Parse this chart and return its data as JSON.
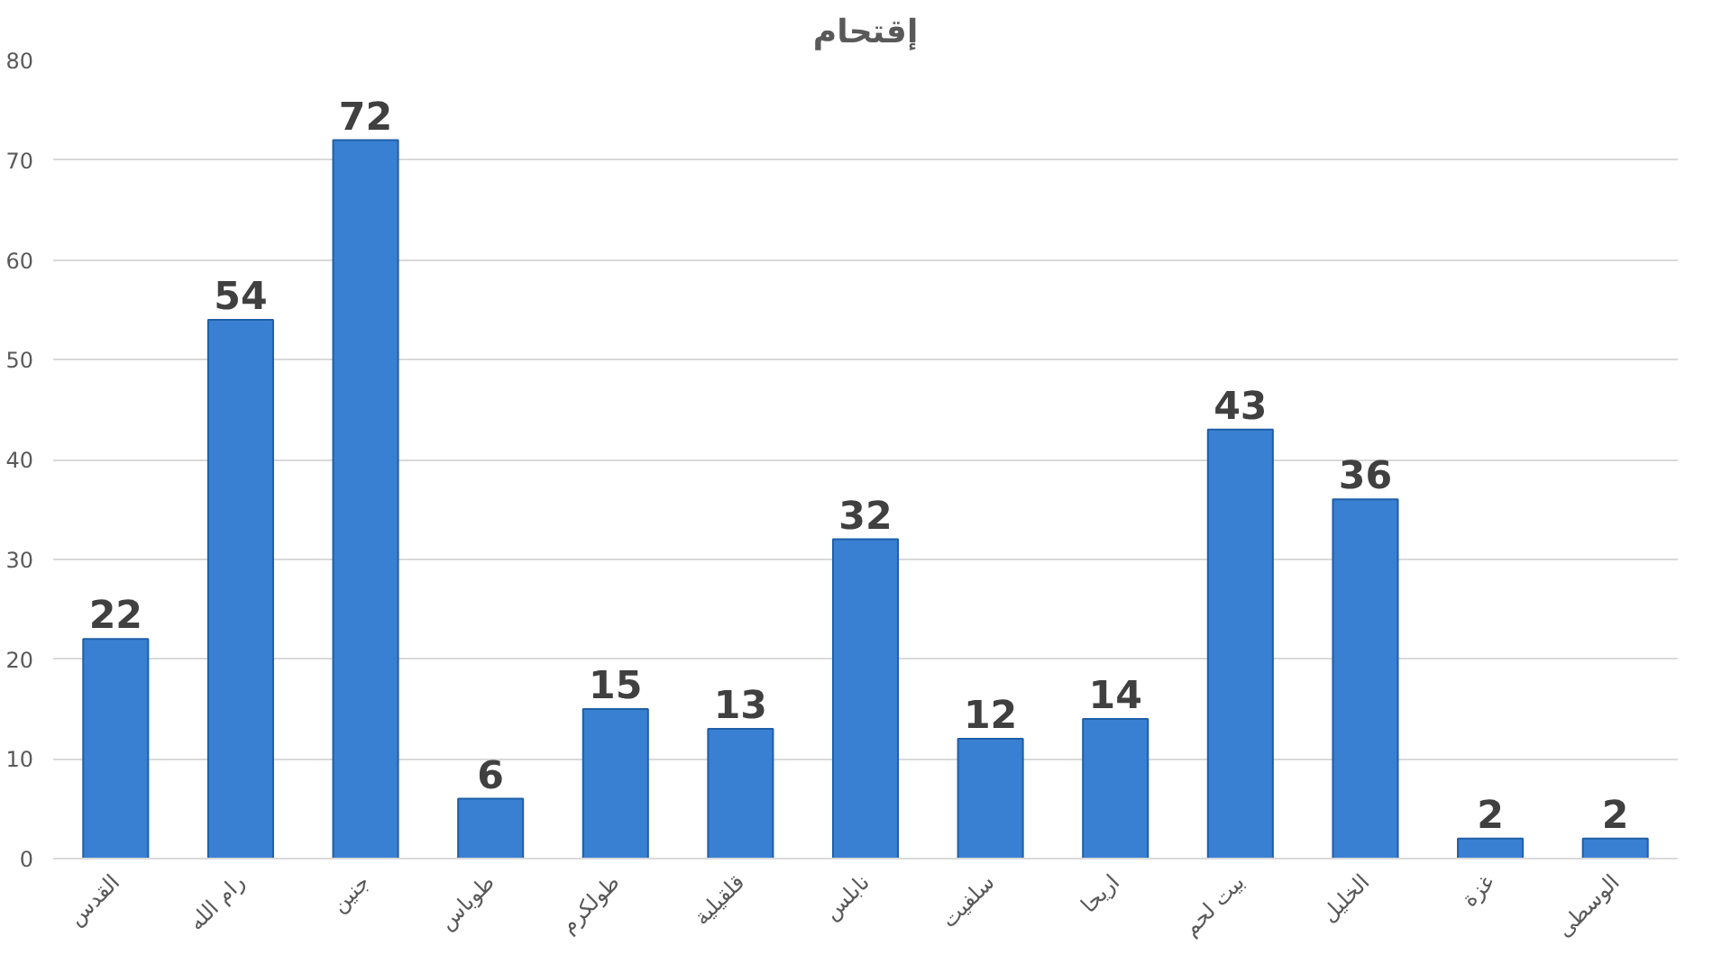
{
  "chart_data": {
    "type": "bar",
    "title": "إقتحام",
    "categories": [
      "القدس",
      "رام الله",
      "جنين",
      "طوباس",
      "طولكرم",
      "قلقيلية",
      "نابلس",
      "سلفيت",
      "اريحا",
      "بيت لحم",
      "الخليل",
      "غزة",
      "الوسطى"
    ],
    "values": [
      22,
      54,
      72,
      6,
      15,
      13,
      32,
      12,
      14,
      43,
      36,
      2,
      2
    ],
    "color": "#3a80d2",
    "ylim": [
      0,
      80
    ],
    "yticks": [
      0,
      10,
      20,
      30,
      40,
      50,
      60,
      70,
      80
    ],
    "grid": "y",
    "data_labels": true
  }
}
